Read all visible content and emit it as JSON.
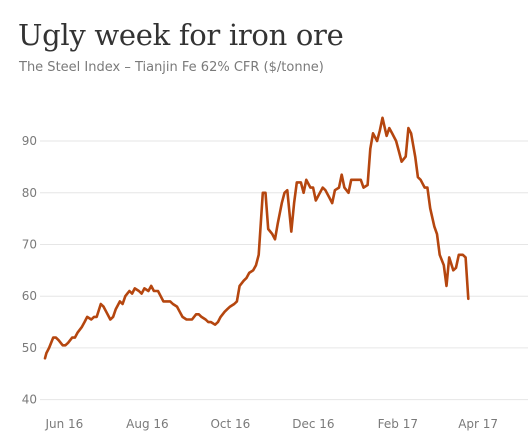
{
  "chart_data": {
    "type": "line",
    "title": "Ugly week for iron ore",
    "subtitle": "The Steel Index – Tianjin Fe 62% CFR ($/tonne)",
    "xlabel": "",
    "ylabel": "",
    "x_ticks": [
      "Jun 16",
      "Aug 16",
      "Oct 16",
      "Dec 16",
      "Feb 17",
      "Apr 17"
    ],
    "y_ticks": [
      40,
      50,
      60,
      70,
      80,
      90
    ],
    "ylim": [
      38,
      96
    ],
    "xlim": [
      "2016-05-31",
      "2017-05-15"
    ],
    "grid": true,
    "series": [
      {
        "color": "#b5460f",
        "points": [
          [
            "2016-05-31",
            48
          ],
          [
            "2016-06-01",
            49
          ],
          [
            "2016-06-03",
            50
          ],
          [
            "2016-06-06",
            52
          ],
          [
            "2016-06-08",
            52
          ],
          [
            "2016-06-10",
            51.5
          ],
          [
            "2016-06-13",
            50.5
          ],
          [
            "2016-06-15",
            50.5
          ],
          [
            "2016-06-17",
            51
          ],
          [
            "2016-06-20",
            52
          ],
          [
            "2016-06-22",
            52
          ],
          [
            "2016-06-24",
            53
          ],
          [
            "2016-06-27",
            54
          ],
          [
            "2016-06-29",
            55
          ],
          [
            "2016-07-01",
            56
          ],
          [
            "2016-07-04",
            55.5
          ],
          [
            "2016-07-06",
            56
          ],
          [
            "2016-07-08",
            56
          ],
          [
            "2016-07-11",
            58.5
          ],
          [
            "2016-07-13",
            58
          ],
          [
            "2016-07-15",
            57
          ],
          [
            "2016-07-18",
            55.5
          ],
          [
            "2016-07-20",
            56
          ],
          [
            "2016-07-22",
            57.5
          ],
          [
            "2016-07-25",
            59
          ],
          [
            "2016-07-27",
            58.5
          ],
          [
            "2016-07-29",
            60
          ],
          [
            "2016-08-01",
            61
          ],
          [
            "2016-08-03",
            60.5
          ],
          [
            "2016-08-05",
            61.5
          ],
          [
            "2016-08-08",
            61
          ],
          [
            "2016-08-10",
            60.5
          ],
          [
            "2016-08-12",
            61.5
          ],
          [
            "2016-08-15",
            61
          ],
          [
            "2016-08-17",
            62
          ],
          [
            "2016-08-19",
            61
          ],
          [
            "2016-08-22",
            61
          ],
          [
            "2016-08-24",
            60
          ],
          [
            "2016-08-26",
            59
          ],
          [
            "2016-08-29",
            59
          ],
          [
            "2016-08-31",
            59
          ],
          [
            "2016-09-02",
            58.5
          ],
          [
            "2016-09-05",
            58
          ],
          [
            "2016-09-07",
            57
          ],
          [
            "2016-09-09",
            56
          ],
          [
            "2016-09-12",
            55.5
          ],
          [
            "2016-09-14",
            55.5
          ],
          [
            "2016-09-16",
            55.5
          ],
          [
            "2016-09-19",
            56.5
          ],
          [
            "2016-09-21",
            56.5
          ],
          [
            "2016-09-23",
            56
          ],
          [
            "2016-09-26",
            55.5
          ],
          [
            "2016-09-28",
            55
          ],
          [
            "2016-09-30",
            55
          ],
          [
            "2016-10-03",
            54.5
          ],
          [
            "2016-10-05",
            55
          ],
          [
            "2016-10-07",
            56
          ],
          [
            "2016-10-10",
            57
          ],
          [
            "2016-10-12",
            57.5
          ],
          [
            "2016-10-14",
            58
          ],
          [
            "2016-10-17",
            58.5
          ],
          [
            "2016-10-19",
            59
          ],
          [
            "2016-10-21",
            62
          ],
          [
            "2016-10-24",
            63
          ],
          [
            "2016-10-26",
            63.5
          ],
          [
            "2016-10-28",
            64.5
          ],
          [
            "2016-10-31",
            65
          ],
          [
            "2016-11-02",
            66
          ],
          [
            "2016-11-04",
            68
          ],
          [
            "2016-11-07",
            80
          ],
          [
            "2016-11-09",
            80
          ],
          [
            "2016-11-11",
            73
          ],
          [
            "2016-11-14",
            72
          ],
          [
            "2016-11-16",
            71
          ],
          [
            "2016-11-18",
            74
          ],
          [
            "2016-11-21",
            78
          ],
          [
            "2016-11-23",
            80
          ],
          [
            "2016-11-25",
            80.5
          ],
          [
            "2016-11-28",
            72.5
          ],
          [
            "2016-11-30",
            78
          ],
          [
            "2016-12-02",
            82
          ],
          [
            "2016-12-05",
            82
          ],
          [
            "2016-12-07",
            80
          ],
          [
            "2016-12-09",
            82.5
          ],
          [
            "2016-12-12",
            81
          ],
          [
            "2016-12-14",
            81
          ],
          [
            "2016-12-16",
            78.5
          ],
          [
            "2016-12-19",
            80
          ],
          [
            "2016-12-21",
            81
          ],
          [
            "2016-12-23",
            80.5
          ],
          [
            "2016-12-26",
            79
          ],
          [
            "2016-12-28",
            78
          ],
          [
            "2016-12-30",
            80.5
          ],
          [
            "2017-01-02",
            81
          ],
          [
            "2017-01-04",
            83.5
          ],
          [
            "2017-01-06",
            81
          ],
          [
            "2017-01-09",
            80
          ],
          [
            "2017-01-11",
            82.5
          ],
          [
            "2017-01-13",
            82.5
          ],
          [
            "2017-01-16",
            82.5
          ],
          [
            "2017-01-18",
            82.5
          ],
          [
            "2017-01-20",
            81
          ],
          [
            "2017-01-23",
            81.5
          ],
          [
            "2017-01-25",
            88.5
          ],
          [
            "2017-01-27",
            91.5
          ],
          [
            "2017-01-30",
            90
          ],
          [
            "2017-02-01",
            92
          ],
          [
            "2017-02-03",
            94.5
          ],
          [
            "2017-02-06",
            91
          ],
          [
            "2017-02-08",
            92.5
          ],
          [
            "2017-02-10",
            91.5
          ],
          [
            "2017-02-13",
            90
          ],
          [
            "2017-02-15",
            88
          ],
          [
            "2017-02-17",
            86
          ],
          [
            "2017-02-20",
            87
          ],
          [
            "2017-02-22",
            92.5
          ],
          [
            "2017-02-24",
            91.5
          ],
          [
            "2017-02-27",
            87
          ],
          [
            "2017-03-01",
            83
          ],
          [
            "2017-03-03",
            82.5
          ],
          [
            "2017-03-06",
            81
          ],
          [
            "2017-03-08",
            81
          ],
          [
            "2017-03-10",
            77
          ],
          [
            "2017-03-13",
            73.5
          ],
          [
            "2017-03-15",
            72
          ],
          [
            "2017-03-17",
            68
          ],
          [
            "2017-03-20",
            66
          ],
          [
            "2017-03-22",
            62
          ],
          [
            "2017-03-24",
            67.5
          ],
          [
            "2017-03-27",
            65
          ],
          [
            "2017-03-29",
            65.5
          ],
          [
            "2017-03-31",
            68
          ],
          [
            "2017-04-03",
            68
          ],
          [
            "2017-04-05",
            67.5
          ],
          [
            "2017-04-07",
            59.5
          ]
        ]
      }
    ]
  },
  "colors": {
    "line": "#b5460f",
    "grid": "#e6e6e6",
    "tick_text": "#7a7a7a",
    "title": "#333333"
  }
}
